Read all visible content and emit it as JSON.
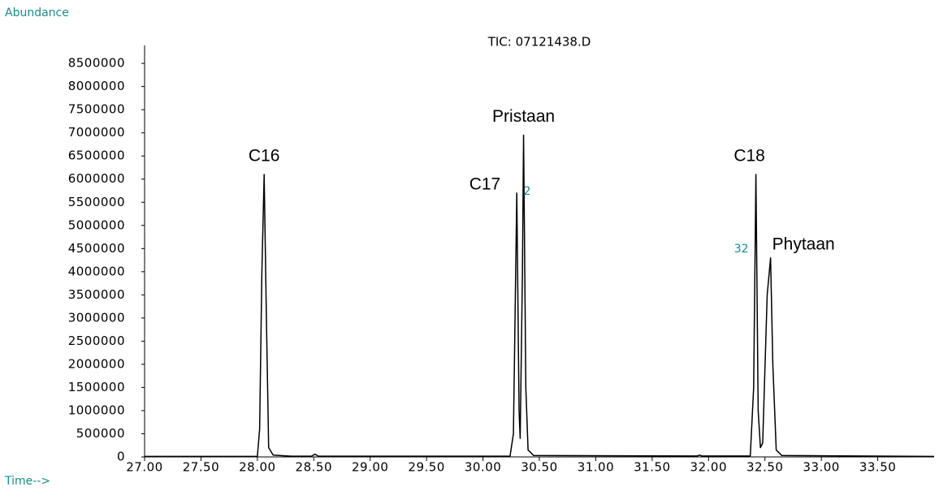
{
  "chart_data": {
    "type": "line",
    "title": "TIC: 07121438.D",
    "y_label": "Abundance",
    "x_label": "Time-->",
    "xlim": [
      27.0,
      34.0
    ],
    "ylim": [
      0,
      8800000
    ],
    "xticks": [
      {
        "value": 27.0,
        "label": "27.00"
      },
      {
        "value": 27.5,
        "label": "27.50"
      },
      {
        "value": 28.0,
        "label": "28.00"
      },
      {
        "value": 28.5,
        "label": "28.50"
      },
      {
        "value": 29.0,
        "label": "29.00"
      },
      {
        "value": 29.5,
        "label": "29.50"
      },
      {
        "value": 30.0,
        "label": "30.00"
      },
      {
        "value": 30.5,
        "label": "30.50"
      },
      {
        "value": 31.0,
        "label": "31.00"
      },
      {
        "value": 31.5,
        "label": "31.50"
      },
      {
        "value": 32.0,
        "label": "32.00"
      },
      {
        "value": 32.5,
        "label": "32.50"
      },
      {
        "value": 33.0,
        "label": "33.00"
      },
      {
        "value": 33.5,
        "label": "33.50"
      }
    ],
    "yticks": [
      0,
      500000,
      1000000,
      1500000,
      2000000,
      2500000,
      3000000,
      3500000,
      4000000,
      4500000,
      5000000,
      5500000,
      6000000,
      6500000,
      7000000,
      7500000,
      8000000,
      8500000
    ],
    "series": [
      {
        "name": "TIC",
        "color": "#000000",
        "x": [
          27.0,
          28.0,
          28.02,
          28.04,
          28.06,
          28.08,
          28.1,
          28.14,
          28.3,
          28.48,
          28.51,
          28.54,
          30.24,
          30.27,
          30.3,
          30.32,
          30.33,
          30.35,
          30.36,
          30.38,
          30.4,
          30.45,
          31.9,
          31.92,
          31.94,
          32.37,
          32.4,
          32.42,
          32.44,
          32.46,
          32.48,
          32.52,
          32.55,
          32.57,
          32.6,
          32.65,
          34.0
        ],
        "values": [
          10000,
          10000,
          600000,
          4000000,
          6100000,
          3000000,
          200000,
          40000,
          15000,
          15000,
          60000,
          15000,
          15000,
          500000,
          5700000,
          1000000,
          400000,
          4000000,
          6950000,
          1500000,
          150000,
          30000,
          20000,
          40000,
          20000,
          20000,
          1500000,
          6100000,
          1000000,
          200000,
          300000,
          3500000,
          4300000,
          2000000,
          150000,
          30000,
          10000
        ]
      }
    ],
    "annotations": [
      {
        "text": "C16",
        "x": 28.06,
        "y": 6100000
      },
      {
        "text": "C17",
        "x": 30.3,
        "y": 5700000
      },
      {
        "text": "Pristaan",
        "x": 30.36,
        "y": 6950000
      },
      {
        "text": "C18",
        "x": 32.42,
        "y": 6100000
      },
      {
        "text": "Phytaan",
        "x": 32.55,
        "y": 4300000
      }
    ],
    "peak_numbers": [
      {
        "text": "2",
        "x": 30.36,
        "y": 5700000
      },
      {
        "text": "32",
        "x": 32.42,
        "y": 4400000
      }
    ]
  }
}
